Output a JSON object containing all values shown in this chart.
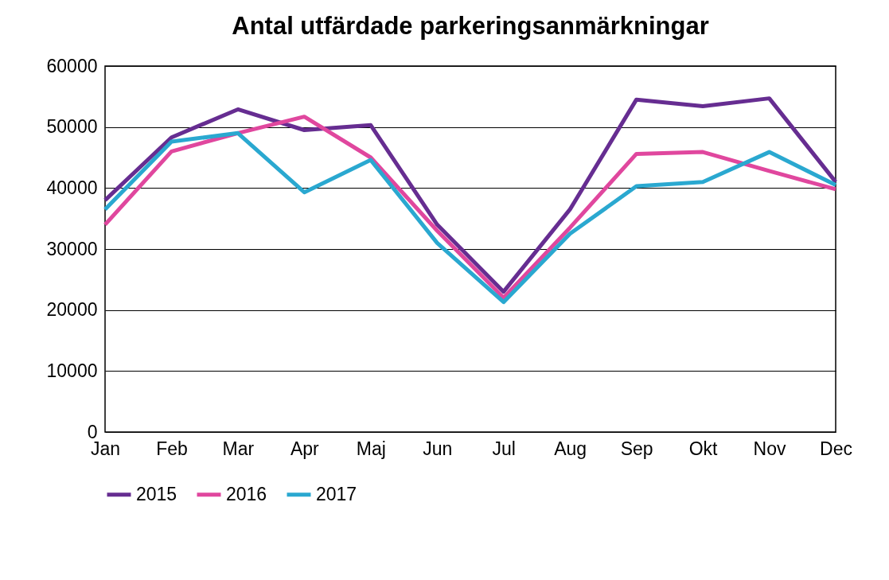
{
  "chart_data": {
    "type": "line",
    "title": "Antal utfärdade parkeringsanmärkningar",
    "categories": [
      "Jan",
      "Feb",
      "Mar",
      "Apr",
      "Maj",
      "Jun",
      "Jul",
      "Aug",
      "Sep",
      "Okt",
      "Nov",
      "Dec"
    ],
    "series": [
      {
        "name": "2015",
        "color": "#662d91",
        "values": [
          38000,
          48300,
          52900,
          49500,
          50300,
          34000,
          23000,
          36500,
          54500,
          53400,
          54700,
          41000
        ]
      },
      {
        "name": "2016",
        "color": "#e0479e",
        "values": [
          34000,
          46000,
          49000,
          51700,
          45000,
          33000,
          22000,
          33500,
          45600,
          45900,
          42800,
          39800
        ]
      },
      {
        "name": "2017",
        "color": "#2aa8d0",
        "values": [
          36500,
          47600,
          49000,
          39300,
          44600,
          31000,
          21300,
          32500,
          40300,
          41000,
          45900,
          40500
        ]
      }
    ],
    "ylim": [
      0,
      60000
    ],
    "yticks": [
      0,
      10000,
      20000,
      30000,
      40000,
      50000,
      60000
    ],
    "grid": "y",
    "legend": "bottom",
    "line_style": "solid",
    "marker": "none"
  }
}
